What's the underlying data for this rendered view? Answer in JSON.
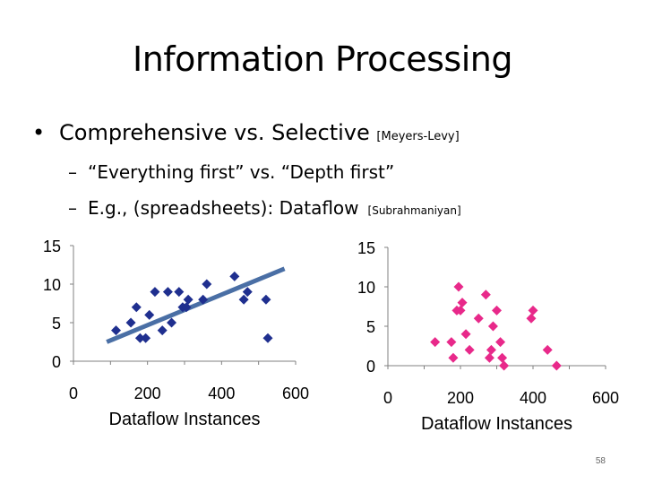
{
  "slide": {
    "title": "Information Processing",
    "bullet": {
      "text": "Comprehensive vs. Selective",
      "citation": "[Meyers-Levy]"
    },
    "sub_bullets": [
      {
        "dash": "–",
        "text": "“Everything first” vs. “Depth first”",
        "citation": ""
      },
      {
        "dash": "–",
        "text": "E.g., (spreadsheets): Dataflow",
        "citation": "[Subrahmaniyan]"
      }
    ],
    "page_number": "58"
  },
  "chart_data": [
    {
      "type": "scatter",
      "xlabel": "Dataflow Instances",
      "ylabel": "",
      "xlim": [
        0,
        600
      ],
      "ylim": [
        0,
        15
      ],
      "xticks": [
        0,
        200,
        400,
        600
      ],
      "yticks": [
        0,
        5,
        10,
        15
      ],
      "marker": "diamond",
      "color": "#1f2f8f",
      "trendline": {
        "color": "#4a6fa5",
        "points": [
          [
            90,
            2.5
          ],
          [
            570,
            12
          ]
        ]
      },
      "points": [
        [
          115,
          4
        ],
        [
          155,
          5
        ],
        [
          170,
          7
        ],
        [
          180,
          3
        ],
        [
          195,
          3
        ],
        [
          205,
          6
        ],
        [
          220,
          9
        ],
        [
          240,
          4
        ],
        [
          255,
          9
        ],
        [
          265,
          5
        ],
        [
          285,
          9
        ],
        [
          295,
          7
        ],
        [
          305,
          7
        ],
        [
          310,
          8
        ],
        [
          350,
          8
        ],
        [
          360,
          10
        ],
        [
          435,
          11
        ],
        [
          460,
          8
        ],
        [
          470,
          9
        ],
        [
          520,
          8
        ],
        [
          525,
          3
        ]
      ]
    },
    {
      "type": "scatter",
      "xlabel": "Dataflow Instances",
      "ylabel": "",
      "xlim": [
        0,
        600
      ],
      "ylim": [
        0,
        15
      ],
      "xticks": [
        0,
        200,
        400,
        600
      ],
      "yticks": [
        0,
        5,
        10,
        15
      ],
      "marker": "diamond",
      "color": "#e8298a",
      "points": [
        [
          130,
          3
        ],
        [
          175,
          3
        ],
        [
          180,
          1
        ],
        [
          190,
          7
        ],
        [
          195,
          10
        ],
        [
          200,
          7
        ],
        [
          205,
          8
        ],
        [
          215,
          4
        ],
        [
          225,
          2
        ],
        [
          250,
          6
        ],
        [
          270,
          9
        ],
        [
          280,
          1
        ],
        [
          285,
          2
        ],
        [
          290,
          5
        ],
        [
          300,
          7
        ],
        [
          310,
          3
        ],
        [
          315,
          1
        ],
        [
          320,
          0
        ],
        [
          395,
          6
        ],
        [
          400,
          7
        ],
        [
          440,
          2
        ],
        [
          465,
          0
        ]
      ]
    }
  ]
}
